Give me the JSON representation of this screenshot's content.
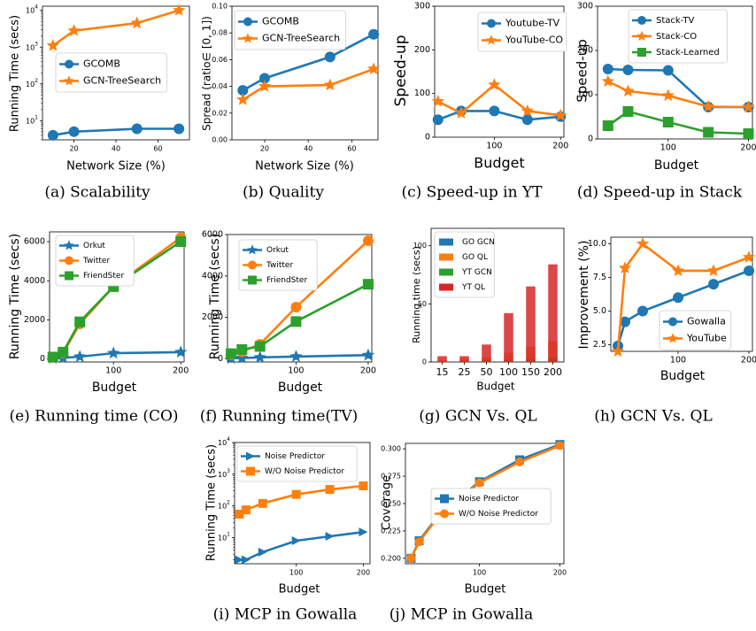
{
  "colors": {
    "blue": "#1f77b4",
    "orange": "#ff7f0e",
    "green": "#2ca02c",
    "red": "#d62728"
  },
  "chart_data": [
    {
      "id": "a",
      "type": "line",
      "caption": "(a) Scalability",
      "xlabel": "Network Size (%)",
      "ylabel": "Running Time (secs)",
      "yscale": "log",
      "xlim": [
        5,
        75
      ],
      "ylim": [
        3,
        13000
      ],
      "xticks": [
        20,
        40,
        60
      ],
      "yticks": [
        10,
        100,
        1000,
        10000
      ],
      "ytick_labels": [
        "10^1",
        "10^2",
        "10^3",
        "10^4"
      ],
      "legend_pos": "center-right",
      "series": [
        {
          "name": "GCOMB",
          "marker": "circle",
          "color": "blue",
          "x": [
            10,
            20,
            50,
            70
          ],
          "y": [
            4,
            5,
            6,
            6
          ]
        },
        {
          "name": "GCN-TreeSearch",
          "marker": "star",
          "color": "orange",
          "x": [
            10,
            20,
            50,
            70
          ],
          "y": [
            1100,
            2800,
            4500,
            10000
          ]
        }
      ]
    },
    {
      "id": "b",
      "type": "line",
      "caption": "(b) Quality",
      "xlabel": "Network Size (%)",
      "ylabel": "Spread (ratio∈ [0, 1])",
      "xlim": [
        5,
        72
      ],
      "ylim": [
        0,
        0.1
      ],
      "xticks": [
        20,
        40,
        60
      ],
      "yticks": [
        0,
        0.02,
        0.04,
        0.06,
        0.08,
        0.1
      ],
      "ytick_labels": [
        "0.00",
        "0.02",
        "0.04",
        "0.06",
        "0.08",
        "0.10"
      ],
      "legend_pos": "top-left",
      "series": [
        {
          "name": "GCOMB",
          "marker": "circle",
          "color": "blue",
          "x": [
            10,
            20,
            50,
            70
          ],
          "y": [
            0.037,
            0.046,
            0.062,
            0.079
          ]
        },
        {
          "name": "GCN-TreeSearch",
          "marker": "star",
          "color": "orange",
          "x": [
            10,
            20,
            50,
            70
          ],
          "y": [
            0.03,
            0.04,
            0.041,
            0.053
          ]
        }
      ]
    },
    {
      "id": "c",
      "type": "line",
      "caption": "(c) Speed-up in YT",
      "xlabel": "Budget",
      "ylabel": "Speed-up",
      "xlim": [
        10,
        205
      ],
      "ylim": [
        0,
        300
      ],
      "xticks": [
        100,
        200
      ],
      "yticks": [
        0,
        100,
        200,
        300
      ],
      "legend_pos": "top-right",
      "series": [
        {
          "name": "Youtube-TV",
          "marker": "circle",
          "color": "blue",
          "x": [
            15,
            50,
            100,
            150,
            200
          ],
          "y": [
            40,
            60,
            60,
            40,
            47
          ]
        },
        {
          "name": "YouTube-CO",
          "marker": "star",
          "color": "orange",
          "x": [
            15,
            50,
            100,
            150,
            200
          ],
          "y": [
            82,
            55,
            120,
            60,
            50
          ]
        }
      ]
    },
    {
      "id": "d",
      "type": "line",
      "caption": "(d) Speed-up in Stack",
      "xlabel": "Budget",
      "ylabel": "Speed-up",
      "xlim": [
        12,
        205
      ],
      "ylim": [
        0,
        300
      ],
      "xticks": [
        100,
        200
      ],
      "yticks": [
        0,
        100,
        200,
        300
      ],
      "legend_pos": "top-right",
      "series": [
        {
          "name": "Stack-TV",
          "marker": "circle",
          "color": "blue",
          "x": [
            25,
            50,
            100,
            150,
            200
          ],
          "y": [
            158,
            156,
            155,
            72,
            72
          ]
        },
        {
          "name": "Stack-CO",
          "marker": "star",
          "color": "orange",
          "x": [
            25,
            50,
            100,
            150,
            200
          ],
          "y": [
            130,
            108,
            98,
            73,
            72
          ]
        },
        {
          "name": "Stack-Learned",
          "marker": "square",
          "color": "green",
          "x": [
            25,
            50,
            100,
            150,
            200
          ],
          "y": [
            30,
            62,
            38,
            15,
            12
          ]
        }
      ]
    },
    {
      "id": "e",
      "type": "line",
      "caption": "(e) Running time (CO)",
      "xlabel": "Budget",
      "ylabel": "Running Time (secs)",
      "xlim": [
        5,
        205
      ],
      "ylim": [
        -150,
        6500
      ],
      "xticks": [
        100,
        200
      ],
      "yticks": [
        0,
        2000,
        4000,
        6000
      ],
      "legend_pos": "top-left",
      "series": [
        {
          "name": "Orkut",
          "marker": "star",
          "color": "blue",
          "x": [
            10,
            25,
            50,
            100,
            200
          ],
          "y": [
            30,
            60,
            120,
            300,
            350
          ]
        },
        {
          "name": "Twitter",
          "marker": "circle",
          "color": "orange",
          "x": [
            10,
            25,
            50,
            100,
            200
          ],
          "y": [
            80,
            300,
            1800,
            3700,
            6200
          ]
        },
        {
          "name": "FriendSter",
          "marker": "square",
          "color": "green",
          "x": [
            10,
            25,
            50,
            100,
            200
          ],
          "y": [
            100,
            350,
            1900,
            3700,
            6000
          ]
        }
      ]
    },
    {
      "id": "f",
      "type": "line",
      "caption": "(f) Running time(TV)",
      "xlabel": "Budget",
      "ylabel": "Running Time (secs)",
      "xlim": [
        5,
        205
      ],
      "ylim": [
        -150,
        6000
      ],
      "xticks": [
        100,
        200
      ],
      "yticks": [
        0,
        2000,
        4000,
        6000
      ],
      "legend_pos": "top-left",
      "series": [
        {
          "name": "Orkut",
          "marker": "star",
          "color": "blue",
          "x": [
            10,
            25,
            50,
            100,
            200
          ],
          "y": [
            20,
            40,
            70,
            110,
            180
          ]
        },
        {
          "name": "Twitter",
          "marker": "circle",
          "color": "orange",
          "x": [
            10,
            25,
            50,
            100,
            200
          ],
          "y": [
            200,
            350,
            700,
            2500,
            5700
          ]
        },
        {
          "name": "FriendSter",
          "marker": "square",
          "color": "green",
          "x": [
            10,
            25,
            50,
            100,
            200
          ],
          "y": [
            250,
            450,
            600,
            1800,
            3600
          ]
        }
      ]
    },
    {
      "id": "g",
      "type": "bar",
      "caption": "(g) GCN Vs. QL",
      "xlabel": "Budget",
      "ylabel": "Running time (secs)",
      "categories": [
        "15",
        "25",
        "50",
        "100",
        "150",
        "200"
      ],
      "ylim": [
        0,
        115
      ],
      "yticks": [
        0,
        50,
        100
      ],
      "legend_pos": "top-left",
      "series": [
        {
          "name": "GO GCN",
          "color": "blue",
          "values": [
            0.5,
            0.8,
            1,
            1.5,
            2,
            2.5
          ]
        },
        {
          "name": "GO QL",
          "color": "orange",
          "values": [
            1.5,
            2.5,
            4,
            8,
            13,
            18
          ]
        },
        {
          "name": "YT GCN",
          "color": "green",
          "values": [
            0.5,
            0.8,
            1.2,
            2,
            3,
            3.5
          ]
        },
        {
          "name": "YT QL",
          "color": "red",
          "values": [
            5,
            5,
            15,
            42,
            65,
            84
          ]
        }
      ]
    },
    {
      "id": "h",
      "type": "line",
      "caption": "(h) GCN Vs. QL",
      "xlabel": "Budget",
      "ylabel": "Improvement (%)",
      "xlim": [
        5,
        205
      ],
      "ylim": [
        2,
        10.5
      ],
      "xticks": [
        100,
        200
      ],
      "yticks": [
        2.5,
        5.0,
        7.5,
        10.0
      ],
      "ytick_labels": [
        "2.5",
        "5.0",
        "7.5",
        "10.0"
      ],
      "legend_pos": "bottom-right",
      "series": [
        {
          "name": "Gowalla",
          "marker": "circle",
          "color": "blue",
          "x": [
            15,
            25,
            50,
            100,
            150,
            200
          ],
          "y": [
            2.4,
            4.2,
            5,
            6,
            7,
            8
          ]
        },
        {
          "name": "YouTube",
          "marker": "star",
          "color": "orange",
          "x": [
            15,
            25,
            50,
            100,
            150,
            200
          ],
          "y": [
            2,
            8.2,
            10,
            8,
            8,
            9
          ]
        }
      ]
    },
    {
      "id": "i",
      "type": "line",
      "caption": "(i) MCP in Gowalla",
      "xlabel": "Budget",
      "ylabel": "Running Time (secs)",
      "yscale": "log",
      "xlim": [
        8,
        210
      ],
      "ylim": [
        1.5,
        10000
      ],
      "xticks": [
        100,
        200
      ],
      "yticks": [
        10,
        100,
        1000,
        10000
      ],
      "ytick_labels": [
        "10^1",
        "10^2",
        "10^3",
        "10^4"
      ],
      "legend_pos": "top-left",
      "series": [
        {
          "name": "Noise Predictor",
          "marker": "triangle-right",
          "color": "blue",
          "x": [
            15,
            25,
            50,
            100,
            150,
            200
          ],
          "y": [
            2,
            2,
            3.5,
            8,
            11,
            15
          ]
        },
        {
          "name": "W/O Noise Predictor",
          "marker": "square",
          "color": "orange",
          "x": [
            15,
            25,
            50,
            100,
            150,
            200
          ],
          "y": [
            55,
            75,
            120,
            230,
            330,
            430
          ]
        }
      ]
    },
    {
      "id": "j",
      "type": "line",
      "caption": "(j) MCP in Gowalla",
      "xlabel": "Budget",
      "ylabel": "Coverage",
      "xlim": [
        8,
        205
      ],
      "ylim": [
        0.195,
        0.305
      ],
      "xticks": [
        100,
        200
      ],
      "yticks": [
        0.2,
        0.225,
        0.25,
        0.275,
        0.3
      ],
      "ytick_labels": [
        "0.200",
        "0.225",
        "0.250",
        "0.275",
        "0.300"
      ],
      "legend_pos": "center-left",
      "series": [
        {
          "name": "Noise Predictor",
          "marker": "square",
          "color": "blue",
          "x": [
            15,
            25,
            50,
            100,
            150,
            200
          ],
          "y": [
            0.2,
            0.216,
            0.24,
            0.27,
            0.29,
            0.304
          ]
        },
        {
          "name": "W/O Noise Predictor",
          "marker": "circle",
          "color": "orange",
          "x": [
            15,
            25,
            50,
            100,
            150,
            200
          ],
          "y": [
            0.2,
            0.215,
            0.239,
            0.269,
            0.288,
            0.303
          ]
        }
      ]
    }
  ]
}
